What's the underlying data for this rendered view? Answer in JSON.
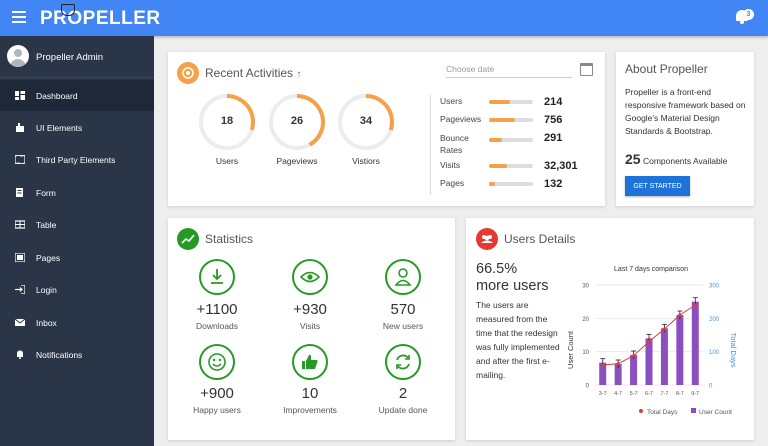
{
  "header": {
    "logo": "PROPELLER",
    "notif_count": "3"
  },
  "sidebar": {
    "user": "Propeller Admin",
    "items": [
      {
        "label": "Dashboard"
      },
      {
        "label": "UI Elements"
      },
      {
        "label": "Third Party Elements"
      },
      {
        "label": "Form"
      },
      {
        "label": "Table"
      },
      {
        "label": "Pages"
      },
      {
        "label": "Login"
      },
      {
        "label": "Inbox"
      },
      {
        "label": "Notifications"
      }
    ]
  },
  "recent": {
    "title": "Recent Activities",
    "trend": "↑",
    "date_placeholder": "Choose date",
    "dials": [
      {
        "value": "18",
        "label": "Users",
        "fraction": 0.3
      },
      {
        "value": "26",
        "label": "Pageviews",
        "fraction": 0.42
      },
      {
        "value": "34",
        "label": "Vistiors",
        "fraction": 0.3
      }
    ],
    "stats": [
      {
        "label": "Users",
        "value": "214",
        "fraction": 0.48
      },
      {
        "label": "Pageviews",
        "value": "756",
        "fraction": 0.6
      },
      {
        "label": "Bounce Rates",
        "value": "291",
        "fraction": 0.3
      },
      {
        "label": "Visits",
        "value": "32,301",
        "fraction": 0.42
      },
      {
        "label": "Pages",
        "value": "132",
        "fraction": 0.13
      }
    ]
  },
  "about": {
    "title": "About Propeller",
    "text": "Propeller is a front-end responsive framework based on Google's Material Design Standards & Bootstrap.",
    "count": "25",
    "count_label": "Components Available",
    "button": "GET STARTED"
  },
  "statistics": {
    "title": "Statistics",
    "items": [
      {
        "value": "+1100",
        "label": "Downloads"
      },
      {
        "value": "+930",
        "label": "Visits"
      },
      {
        "value": "570",
        "label": "New users"
      },
      {
        "value": "+900",
        "label": "Happy users"
      },
      {
        "value": "10",
        "label": "Improvements"
      },
      {
        "value": "2",
        "label": "Update done"
      }
    ]
  },
  "users_details": {
    "title": "Users Details",
    "percent": "66.5%",
    "percent_label": "more users",
    "description": "The users are measured from the time that the redesign was fully implemented and after the first e-mailing."
  },
  "colors": {
    "accent": "#4285f4",
    "sidebar": "#2a3547",
    "orange": "#f7a04a",
    "green": "#259b24",
    "red": "#e53935",
    "purple": "#8b4fc0"
  },
  "chart_data": {
    "type": "bar",
    "title": "Last 7 days comparison",
    "categories": [
      "3-7",
      "4-7",
      "5-7",
      "6-7",
      "7-7",
      "8-7",
      "9-7"
    ],
    "ylabel": "User Count",
    "y2label": "Total Days",
    "ylim": [
      0,
      30
    ],
    "y2lim": [
      0,
      300
    ],
    "yticks": [
      "0",
      "10",
      "20",
      "30"
    ],
    "y2ticks": [
      "0",
      "100",
      "200",
      "300"
    ],
    "legend_placement": "bottom",
    "series": [
      {
        "name": "User Count",
        "values": [
          6.7,
          6.3,
          9,
          14,
          17,
          21,
          25
        ]
      },
      {
        "name": "Total Days",
        "values": [
          60,
          64,
          88,
          130,
          168,
          210,
          240
        ]
      }
    ]
  }
}
